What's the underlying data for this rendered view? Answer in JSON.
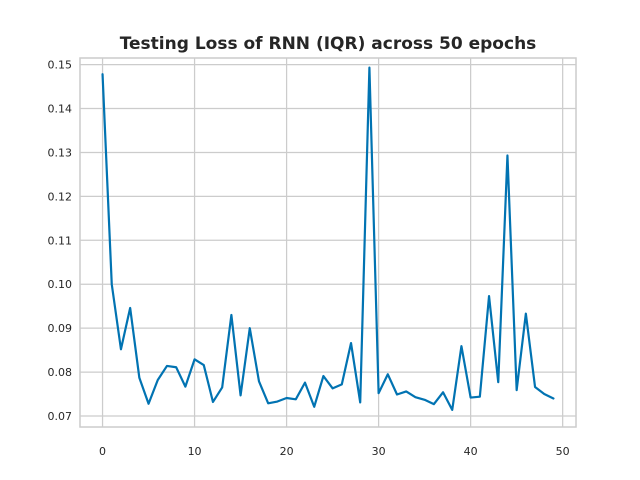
{
  "chart_data": {
    "type": "line",
    "title": "Testing Loss of RNN (IQR) across 50 epochs",
    "xlabel": "",
    "ylabel": "",
    "xlim": [
      -2.45,
      51.45
    ],
    "ylim": [
      0.0675,
      0.1515
    ],
    "x_ticks": [
      0,
      10,
      20,
      30,
      40,
      50
    ],
    "x_tick_labels": [
      "0",
      "10",
      "20",
      "30",
      "40",
      "50"
    ],
    "y_ticks": [
      0.07,
      0.08,
      0.09,
      0.1,
      0.11,
      0.12,
      0.13,
      0.14,
      0.15
    ],
    "y_tick_labels": [
      "0.07",
      "0.08",
      "0.09",
      "0.10",
      "0.11",
      "0.12",
      "0.13",
      "0.14",
      "0.15"
    ],
    "grid": true,
    "color": "#0173b2",
    "x": [
      0,
      1,
      2,
      3,
      4,
      5,
      6,
      7,
      8,
      9,
      10,
      11,
      12,
      13,
      14,
      15,
      16,
      17,
      18,
      19,
      20,
      21,
      22,
      23,
      24,
      25,
      26,
      27,
      28,
      29,
      30,
      31,
      32,
      33,
      34,
      35,
      36,
      37,
      38,
      39,
      40,
      41,
      42,
      43,
      44,
      45,
      46,
      47,
      48,
      49
    ],
    "values": [
      0.1478,
      0.1,
      0.0852,
      0.0946,
      0.0787,
      0.0728,
      0.0782,
      0.0814,
      0.0811,
      0.0767,
      0.0829,
      0.0816,
      0.0732,
      0.0765,
      0.093,
      0.0747,
      0.09,
      0.0779,
      0.0729,
      0.0733,
      0.0741,
      0.0738,
      0.0776,
      0.0721,
      0.0791,
      0.0763,
      0.0772,
      0.0866,
      0.0731,
      0.1493,
      0.0752,
      0.0795,
      0.0749,
      0.0756,
      0.0743,
      0.0737,
      0.0727,
      0.0754,
      0.0714,
      0.0859,
      0.0742,
      0.0744,
      0.0973,
      0.0777,
      0.1293,
      0.0759,
      0.0933,
      0.0766,
      0.075,
      0.074
    ]
  }
}
